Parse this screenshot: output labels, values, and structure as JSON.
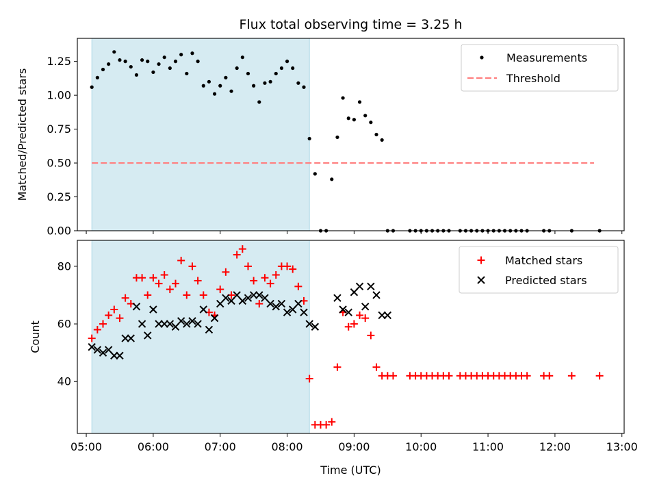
{
  "chart_data": [
    {
      "type": "scatter",
      "title": "Flux total observing time = 3.25 h",
      "ylabel": "Matched/Predicted stars",
      "xlabel": "",
      "ylim": [
        0,
        1.42
      ],
      "xlim": [
        "04:52",
        "13:02"
      ],
      "yticks": [
        0.0,
        0.25,
        0.5,
        0.75,
        1.0,
        1.25
      ],
      "ytick_labels": [
        "0.00",
        "0.25",
        "0.50",
        "0.75",
        "1.00",
        "1.25"
      ],
      "shaded_span": [
        "05:05",
        "08:20"
      ],
      "shaded_color": "#add8e6",
      "legend_position": "top-right",
      "legend": [
        {
          "label": "Measurements",
          "marker": "dot",
          "color": "#000000"
        },
        {
          "label": "Threshold",
          "marker": "dashed-line",
          "color": "#ff7f7f"
        }
      ],
      "threshold": {
        "value": 0.5,
        "x_range": [
          "05:05",
          "12:35"
        ],
        "color": "#ff7f7f"
      },
      "series": [
        {
          "name": "Measurements",
          "color": "#000000",
          "points": [
            [
              "05:05",
              1.06
            ],
            [
              "05:10",
              1.13
            ],
            [
              "05:15",
              1.19
            ],
            [
              "05:20",
              1.23
            ],
            [
              "05:25",
              1.32
            ],
            [
              "05:30",
              1.26
            ],
            [
              "05:35",
              1.25
            ],
            [
              "05:40",
              1.21
            ],
            [
              "05:45",
              1.15
            ],
            [
              "05:50",
              1.26
            ],
            [
              "05:55",
              1.25
            ],
            [
              "06:00",
              1.17
            ],
            [
              "06:05",
              1.23
            ],
            [
              "06:10",
              1.28
            ],
            [
              "06:15",
              1.2
            ],
            [
              "06:20",
              1.25
            ],
            [
              "06:25",
              1.3
            ],
            [
              "06:30",
              1.16
            ],
            [
              "06:35",
              1.31
            ],
            [
              "06:40",
              1.25
            ],
            [
              "06:45",
              1.07
            ],
            [
              "06:50",
              1.1
            ],
            [
              "06:55",
              1.01
            ],
            [
              "07:00",
              1.07
            ],
            [
              "07:05",
              1.13
            ],
            [
              "07:10",
              1.03
            ],
            [
              "07:15",
              1.2
            ],
            [
              "07:20",
              1.28
            ],
            [
              "07:25",
              1.16
            ],
            [
              "07:30",
              1.07
            ],
            [
              "07:35",
              0.95
            ],
            [
              "07:40",
              1.09
            ],
            [
              "07:45",
              1.1
            ],
            [
              "07:50",
              1.16
            ],
            [
              "07:55",
              1.2
            ],
            [
              "08:00",
              1.25
            ],
            [
              "08:05",
              1.2
            ],
            [
              "08:10",
              1.09
            ],
            [
              "08:15",
              1.06
            ],
            [
              "08:20",
              0.68
            ],
            [
              "08:25",
              0.42
            ],
            [
              "08:30",
              0.0
            ],
            [
              "08:35",
              0.0
            ],
            [
              "08:40",
              0.38
            ],
            [
              "08:45",
              0.69
            ],
            [
              "08:50",
              0.98
            ],
            [
              "08:55",
              0.83
            ],
            [
              "09:00",
              0.82
            ],
            [
              "09:05",
              0.95
            ],
            [
              "09:10",
              0.85
            ],
            [
              "09:15",
              0.8
            ],
            [
              "09:20",
              0.71
            ],
            [
              "09:25",
              0.67
            ],
            [
              "09:30",
              0.0
            ],
            [
              "09:35",
              0.0
            ],
            [
              "09:50",
              0.0
            ],
            [
              "09:55",
              0.0
            ],
            [
              "10:00",
              0.0
            ],
            [
              "10:05",
              0.0
            ],
            [
              "10:10",
              0.0
            ],
            [
              "10:15",
              0.0
            ],
            [
              "10:20",
              0.0
            ],
            [
              "10:25",
              0.0
            ],
            [
              "10:35",
              0.0
            ],
            [
              "10:40",
              0.0
            ],
            [
              "10:45",
              0.0
            ],
            [
              "10:50",
              0.0
            ],
            [
              "10:55",
              0.0
            ],
            [
              "11:00",
              0.0
            ],
            [
              "11:05",
              0.0
            ],
            [
              "11:10",
              0.0
            ],
            [
              "11:15",
              0.0
            ],
            [
              "11:20",
              0.0
            ],
            [
              "11:25",
              0.0
            ],
            [
              "11:30",
              0.0
            ],
            [
              "11:35",
              0.0
            ],
            [
              "11:50",
              0.0
            ],
            [
              "11:55",
              0.0
            ],
            [
              "12:15",
              0.0
            ],
            [
              "12:40",
              0.0
            ]
          ]
        }
      ]
    },
    {
      "type": "scatter",
      "title": "",
      "ylabel": "Count",
      "xlabel": "Time (UTC)",
      "ylim": [
        22,
        89
      ],
      "xlim": [
        "04:52",
        "13:02"
      ],
      "yticks": [
        40,
        60,
        80
      ],
      "ytick_labels": [
        "40",
        "60",
        "80"
      ],
      "xticks": [
        "05:00",
        "06:00",
        "07:00",
        "08:00",
        "09:00",
        "10:00",
        "11:00",
        "12:00",
        "13:00"
      ],
      "xtick_labels": [
        "05:00",
        "06:00",
        "07:00",
        "08:00",
        "09:00",
        "10:00",
        "11:00",
        "12:00",
        "13:00"
      ],
      "shaded_span": [
        "05:05",
        "08:20"
      ],
      "shaded_color": "#add8e6",
      "legend_position": "top-right",
      "legend": [
        {
          "label": "Matched stars",
          "marker": "plus",
          "color": "#ff0000"
        },
        {
          "label": "Predicted stars",
          "marker": "x",
          "color": "#000000"
        }
      ],
      "series": [
        {
          "name": "Matched stars",
          "marker": "plus",
          "color": "#ff0000",
          "points": [
            [
              "05:05",
              55
            ],
            [
              "05:10",
              58
            ],
            [
              "05:15",
              60
            ],
            [
              "05:20",
              63
            ],
            [
              "05:25",
              65
            ],
            [
              "05:30",
              62
            ],
            [
              "05:35",
              69
            ],
            [
              "05:40",
              67
            ],
            [
              "05:45",
              76
            ],
            [
              "05:50",
              76
            ],
            [
              "05:55",
              70
            ],
            [
              "06:00",
              76
            ],
            [
              "06:05",
              74
            ],
            [
              "06:10",
              77
            ],
            [
              "06:15",
              72
            ],
            [
              "06:20",
              74
            ],
            [
              "06:25",
              82
            ],
            [
              "06:30",
              70
            ],
            [
              "06:35",
              80
            ],
            [
              "06:40",
              75
            ],
            [
              "06:45",
              70
            ],
            [
              "06:50",
              64
            ],
            [
              "06:55",
              63
            ],
            [
              "07:00",
              72
            ],
            [
              "07:05",
              78
            ],
            [
              "07:10",
              70
            ],
            [
              "07:15",
              84
            ],
            [
              "07:20",
              86
            ],
            [
              "07:25",
              80
            ],
            [
              "07:30",
              75
            ],
            [
              "07:35",
              67
            ],
            [
              "07:40",
              76
            ],
            [
              "07:45",
              74
            ],
            [
              "07:50",
              77
            ],
            [
              "07:55",
              80
            ],
            [
              "08:00",
              80
            ],
            [
              "08:05",
              79
            ],
            [
              "08:10",
              73
            ],
            [
              "08:15",
              68
            ],
            [
              "08:20",
              41
            ],
            [
              "08:25",
              25
            ],
            [
              "08:30",
              25
            ],
            [
              "08:35",
              25
            ],
            [
              "08:40",
              26
            ],
            [
              "08:45",
              45
            ],
            [
              "08:50",
              64
            ],
            [
              "08:55",
              59
            ],
            [
              "09:00",
              60
            ],
            [
              "09:05",
              63
            ],
            [
              "09:10",
              62
            ],
            [
              "09:15",
              56
            ],
            [
              "09:20",
              45
            ],
            [
              "09:25",
              42
            ],
            [
              "09:30",
              42
            ],
            [
              "09:35",
              42
            ],
            [
              "09:50",
              42
            ],
            [
              "09:55",
              42
            ],
            [
              "10:00",
              42
            ],
            [
              "10:05",
              42
            ],
            [
              "10:10",
              42
            ],
            [
              "10:15",
              42
            ],
            [
              "10:20",
              42
            ],
            [
              "10:25",
              42
            ],
            [
              "10:35",
              42
            ],
            [
              "10:40",
              42
            ],
            [
              "10:45",
              42
            ],
            [
              "10:50",
              42
            ],
            [
              "10:55",
              42
            ],
            [
              "11:00",
              42
            ],
            [
              "11:05",
              42
            ],
            [
              "11:10",
              42
            ],
            [
              "11:15",
              42
            ],
            [
              "11:20",
              42
            ],
            [
              "11:25",
              42
            ],
            [
              "11:30",
              42
            ],
            [
              "11:35",
              42
            ],
            [
              "11:50",
              42
            ],
            [
              "11:55",
              42
            ],
            [
              "12:15",
              42
            ],
            [
              "12:40",
              42
            ]
          ]
        },
        {
          "name": "Predicted stars",
          "marker": "x",
          "color": "#000000",
          "points": [
            [
              "05:05",
              52
            ],
            [
              "05:10",
              51
            ],
            [
              "05:15",
              50
            ],
            [
              "05:20",
              51
            ],
            [
              "05:25",
              49
            ],
            [
              "05:30",
              49
            ],
            [
              "05:35",
              55
            ],
            [
              "05:40",
              55
            ],
            [
              "05:45",
              66
            ],
            [
              "05:50",
              60
            ],
            [
              "05:55",
              56
            ],
            [
              "06:00",
              65
            ],
            [
              "06:05",
              60
            ],
            [
              "06:10",
              60
            ],
            [
              "06:15",
              60
            ],
            [
              "06:20",
              59
            ],
            [
              "06:25",
              61
            ],
            [
              "06:30",
              60
            ],
            [
              "06:35",
              61
            ],
            [
              "06:40",
              60
            ],
            [
              "06:45",
              65
            ],
            [
              "06:50",
              58
            ],
            [
              "06:55",
              62
            ],
            [
              "07:00",
              67
            ],
            [
              "07:05",
              69
            ],
            [
              "07:10",
              68
            ],
            [
              "07:15",
              70
            ],
            [
              "07:20",
              68
            ],
            [
              "07:25",
              69
            ],
            [
              "07:30",
              70
            ],
            [
              "07:35",
              70
            ],
            [
              "07:40",
              69
            ],
            [
              "07:45",
              67
            ],
            [
              "07:50",
              66
            ],
            [
              "07:55",
              67
            ],
            [
              "08:00",
              64
            ],
            [
              "08:05",
              65
            ],
            [
              "08:10",
              67
            ],
            [
              "08:15",
              64
            ],
            [
              "08:20",
              60
            ],
            [
              "08:25",
              59
            ],
            [
              "08:45",
              69
            ],
            [
              "08:50",
              65
            ],
            [
              "08:55",
              64
            ],
            [
              "09:00",
              71
            ],
            [
              "09:05",
              73
            ],
            [
              "09:10",
              66
            ],
            [
              "09:15",
              73
            ],
            [
              "09:20",
              70
            ],
            [
              "09:25",
              63
            ],
            [
              "09:30",
              63
            ]
          ]
        }
      ]
    }
  ]
}
